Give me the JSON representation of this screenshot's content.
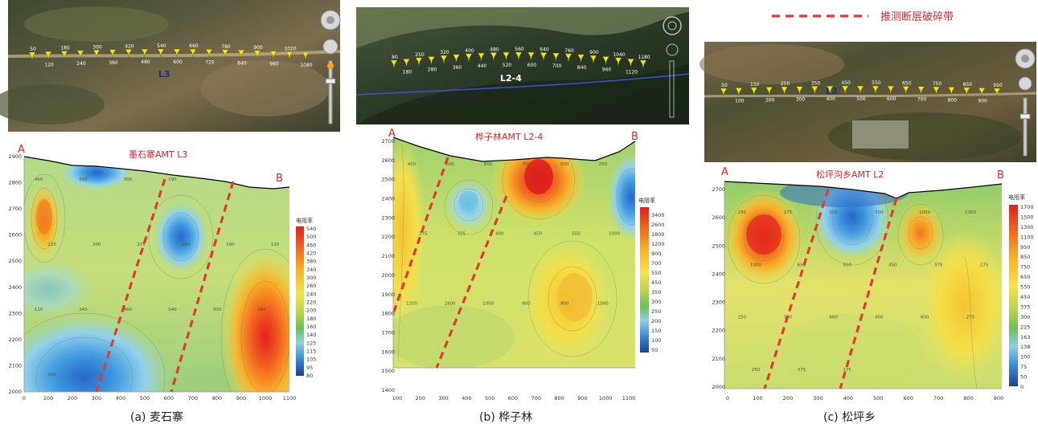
{
  "legend": {
    "label": "推测断层破碎带",
    "color": "#e53935"
  },
  "panels": [
    {
      "id": "a",
      "caption": "(a) 麦石寨",
      "title": "墨石寨AMT L3",
      "line_label": "L3",
      "end_a": "A",
      "end_b": "B",
      "map_station_labels": [
        "50",
        "120",
        "180",
        "240",
        "300",
        "360",
        "420",
        "480",
        "540",
        "600",
        "660",
        "720",
        "780",
        "840",
        "900",
        "960",
        "1020",
        "1080"
      ],
      "colorbar_title": "电阻率",
      "colorbar_ticks": [
        "540",
        "500",
        "460",
        "420",
        "380",
        "340",
        "300",
        "260",
        "240",
        "220",
        "200",
        "180",
        "160",
        "140",
        "125",
        "115",
        "105",
        "95",
        "80"
      ],
      "xticks": [
        "0",
        "100",
        "200",
        "300",
        "400",
        "500",
        "600",
        "700",
        "800",
        "900",
        "1000",
        "1100"
      ],
      "yticks": [
        "2000",
        "2100",
        "2200",
        "2300",
        "2400",
        "2500",
        "2600",
        "2700",
        "2800",
        "2900"
      ],
      "contour_labels": [
        "460",
        "500",
        "300",
        "190",
        "140",
        "275",
        "225",
        "200",
        "275",
        "180",
        "190",
        "130",
        "110",
        "340",
        "460",
        "540",
        "300",
        "260",
        "200"
      ]
    },
    {
      "id": "b",
      "caption": "(b) 桦子林",
      "title": "桦子林AMT  L2-4",
      "line_label": "L2-4",
      "end_a": "A",
      "end_b": "B",
      "map_station_labels": [
        "80",
        "180",
        "250",
        "280",
        "320",
        "360",
        "400",
        "440",
        "480",
        "520",
        "560",
        "600",
        "640",
        "700",
        "760",
        "840",
        "900",
        "960",
        "1040",
        "1120",
        "1180"
      ],
      "colorbar_title": "电阻率",
      "colorbar_ticks": [
        "3400",
        "2600",
        "1800",
        "1200",
        "900",
        "700",
        "550",
        "450",
        "350",
        "300",
        "250",
        "200",
        "150",
        "100",
        "50"
      ],
      "xticks": [
        "100",
        "200",
        "300",
        "400",
        "500",
        "600",
        "700",
        "800",
        "900",
        "1000",
        "1100"
      ],
      "yticks": [
        "1400",
        "1500",
        "1600",
        "1700",
        "1800",
        "1900",
        "2000",
        "2100",
        "2200",
        "2300",
        "2400",
        "2500",
        "2600",
        "2700"
      ],
      "contour_labels": [
        "400",
        "600",
        "800",
        "700",
        "600",
        "250",
        "275",
        "325",
        "400",
        "450",
        "550",
        "1000",
        "1200",
        "1800",
        "1000",
        "800",
        "900",
        "1000",
        "800",
        "700",
        "600",
        "250",
        "275",
        "325"
      ]
    },
    {
      "id": "c",
      "caption": "(c) 松坪乡",
      "title": "松坪沟乡AMT L2",
      "line_label": "L2",
      "end_a": "A",
      "end_b": "B",
      "map_station_labels": [
        "50",
        "100",
        "150",
        "200",
        "250",
        "300",
        "350",
        "400",
        "450",
        "500",
        "550",
        "600",
        "650",
        "700",
        "750",
        "800",
        "850",
        "900",
        "950"
      ],
      "colorbar_title": "电阻率",
      "colorbar_ticks": [
        "1700",
        "1500",
        "1300",
        "1100",
        "950",
        "850",
        "750",
        "650",
        "550",
        "450",
        "375",
        "300",
        "225",
        "163",
        "138",
        "100",
        "75",
        "50",
        "0"
      ],
      "xticks": [
        "0",
        "100",
        "200",
        "300",
        "400",
        "500",
        "600",
        "700",
        "800",
        "900"
      ],
      "yticks": [
        "2000",
        "2100",
        "2200",
        "2300",
        "2400",
        "2500",
        "2600",
        "2700"
      ],
      "contour_labels": [
        "250",
        "175",
        "125",
        "700",
        "1000",
        "1300",
        "1000",
        "650",
        "500",
        "450",
        "375",
        "175",
        "250",
        "300",
        "600",
        "400",
        "600",
        "275",
        "250",
        "375",
        "175"
      ]
    }
  ]
}
